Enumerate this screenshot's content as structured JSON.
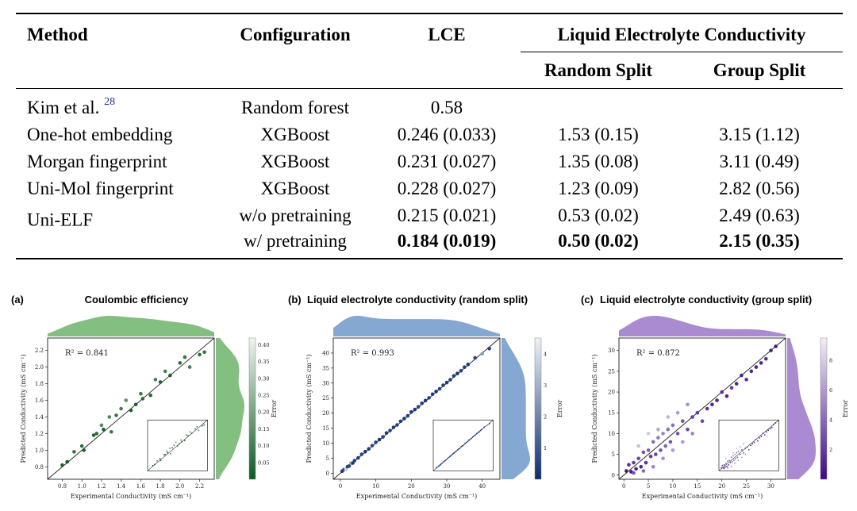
{
  "table": {
    "headers": {
      "method": "Method",
      "configuration": "Configuration",
      "lce": "LCE",
      "group": "Liquid Electrolyte Conductivity",
      "random": "Random Split",
      "groupsplit": "Group Split"
    },
    "rows": [
      {
        "method": "Kim et al.",
        "ref": "28",
        "config": "Random forest",
        "lce": "0.58",
        "random": "",
        "group": ""
      },
      {
        "method": "One-hot embedding",
        "config": "XGBoost",
        "lce": "0.246 (0.033)",
        "random": "1.53 (0.15)",
        "group": "3.15 (1.12)"
      },
      {
        "method": "Morgan fingerprint",
        "config": "XGBoost",
        "lce": "0.231 (0.027)",
        "random": "1.35 (0.08)",
        "group": "3.11 (0.49)"
      },
      {
        "method": "Uni-Mol fingerprint",
        "config": "XGBoost",
        "lce": "0.228 (0.027)",
        "random": "1.23 (0.09)",
        "group": "2.82 (0.56)"
      },
      {
        "method": "Uni-ELF",
        "config": "w/o pretraining",
        "lce": "0.215 (0.021)",
        "random": "0.53 (0.02)",
        "group": "2.49 (0.63)"
      },
      {
        "method": "",
        "config": "w/ pretraining",
        "lce": "0.184 (0.019)",
        "random": "0.50 (0.02)",
        "group": "2.15 (0.35)"
      }
    ]
  },
  "panels": [
    {
      "label": "(a)",
      "title": "Coulombic efficiency",
      "r2": "R² = 0.841",
      "xlabel": "Experimental Conductivity (mS cm⁻¹)",
      "ylabel": "Predicted Conductivity (mS cm⁻¹)",
      "cbar_label": "Error",
      "color": "#5aaa55"
    },
    {
      "label": "(b)",
      "title": "Liquid electrolyte conductivity (random split)",
      "r2": "R² = 0.993",
      "xlabel": "Experimental Conductivity (mS cm⁻¹)",
      "ylabel": "Predicted Conductivity (mS cm⁻¹)",
      "cbar_label": "Error",
      "color": "#5b8bc2"
    },
    {
      "label": "(c)",
      "title": "Liquid electrolyte conductivity (group split)",
      "r2": "R² = 0.872",
      "xlabel": "Experimental Conductivity (mS cm⁻¹)",
      "ylabel": "Predicted Conductivity (mS cm⁻¹)",
      "cbar_label": "Error",
      "color": "#8e64c1"
    }
  ],
  "chart_data": [
    {
      "type": "scatter",
      "title": "Coulombic efficiency",
      "xlabel": "Experimental Conductivity (mS cm⁻¹)",
      "ylabel": "Predicted Conductivity (mS cm⁻¹)",
      "xlim": [
        0.65,
        2.35
      ],
      "ylim": [
        0.65,
        2.35
      ],
      "xticks": [
        "0.8",
        "1.0",
        "1.2",
        "1.4",
        "1.6",
        "1.8",
        "2.0",
        "2.2"
      ],
      "yticks": [
        "0.8",
        "1.0",
        "1.2",
        "1.4",
        "1.6",
        "1.8",
        "2.0",
        "2.2"
      ],
      "cbar_ticks": [
        "0.05",
        "0.10",
        "0.15",
        "0.20",
        "0.25",
        "0.30",
        "0.35",
        "0.40"
      ],
      "cbar_range": [
        0,
        0.42
      ],
      "annotation": "R² = 0.841",
      "x": [
        0.8,
        0.85,
        0.92,
        1.0,
        1.02,
        1.12,
        1.15,
        1.2,
        1.22,
        1.28,
        1.3,
        1.35,
        1.4,
        1.45,
        1.5,
        1.55,
        1.6,
        1.62,
        1.7,
        1.75,
        1.8,
        1.85,
        1.9,
        2.0,
        2.05,
        2.1,
        2.2,
        2.25
      ],
      "y": [
        0.82,
        0.86,
        0.98,
        1.05,
        1.0,
        1.18,
        1.2,
        1.3,
        1.25,
        1.4,
        1.22,
        1.42,
        1.5,
        1.6,
        1.48,
        1.55,
        1.68,
        1.62,
        1.66,
        1.85,
        1.82,
        1.95,
        1.9,
        2.05,
        2.12,
        2.0,
        2.15,
        2.18
      ],
      "err": [
        0.02,
        0.01,
        0.06,
        0.05,
        0.02,
        0.03,
        0.05,
        0.12,
        0.03,
        0.12,
        0.08,
        0.07,
        0.1,
        0.15,
        0.02,
        0.03,
        0.08,
        0.04,
        0.04,
        0.1,
        0.02,
        0.1,
        0.02,
        0.05,
        0.07,
        0.1,
        0.05,
        0.07
      ]
    },
    {
      "type": "scatter",
      "title": "Liquid electrolyte conductivity (random split)",
      "xlabel": "Experimental Conductivity (mS cm⁻¹)",
      "ylabel": "Predicted Conductivity (mS cm⁻¹)",
      "xlim": [
        -2,
        45
      ],
      "ylim": [
        -2,
        45
      ],
      "xticks": [
        "0",
        "10",
        "20",
        "30",
        "40"
      ],
      "yticks": [
        "0",
        "5",
        "10",
        "15",
        "20",
        "25",
        "30",
        "35",
        "40"
      ],
      "cbar_ticks": [
        "1",
        "2",
        "3",
        "4"
      ],
      "cbar_range": [
        0,
        4.5
      ],
      "annotation": "R² = 0.993",
      "x": [
        0.5,
        1,
        1.5,
        2,
        2.5,
        3,
        3.5,
        4,
        5,
        6,
        7,
        8,
        9,
        10,
        11,
        12,
        13,
        14,
        15,
        16,
        17,
        18,
        19,
        20,
        21,
        22,
        23,
        24,
        25,
        26,
        27,
        28,
        29,
        30,
        31,
        32,
        33,
        34,
        35,
        36,
        38,
        40,
        42
      ],
      "y": [
        0.7,
        1.2,
        1.3,
        2.2,
        2.4,
        3.3,
        3.4,
        4.2,
        5.1,
        6.3,
        7.2,
        8.1,
        9.2,
        10.3,
        11.2,
        12.1,
        13.4,
        14.2,
        15.3,
        16.1,
        17.3,
        18.2,
        19.1,
        20.4,
        21.2,
        22.1,
        23.3,
        24.2,
        25.1,
        26.3,
        27.2,
        28.1,
        29.3,
        30.2,
        31.1,
        32.4,
        33.2,
        34.1,
        35.3,
        36.2,
        38.4,
        39.8,
        41.5
      ],
      "err": [
        0.3,
        0.4,
        3.5,
        0.5,
        0.6,
        2.8,
        0.3,
        0.5,
        0.4,
        0.6,
        0.3,
        0.4,
        0.7,
        0.5,
        0.3,
        0.5,
        0.4,
        0.6,
        0.3,
        0.5,
        0.4,
        0.3,
        0.5,
        0.4,
        0.3,
        0.6,
        0.4,
        0.3,
        0.5,
        0.4,
        0.3,
        0.5,
        0.4,
        0.3,
        0.5,
        0.4,
        0.3,
        0.5,
        0.4,
        0.3,
        0.6,
        2.5,
        0.4
      ]
    },
    {
      "type": "scatter",
      "title": "Liquid electrolyte conductivity (group split)",
      "xlabel": "Experimental Conductivity (mS cm⁻¹)",
      "ylabel": "Predicted Conductivity (mS cm⁻¹)",
      "xlim": [
        -1,
        33
      ],
      "ylim": [
        -1,
        33
      ],
      "xticks": [
        "0",
        "5",
        "10",
        "15",
        "20",
        "25",
        "30"
      ],
      "yticks": [
        "0",
        "5",
        "10",
        "15",
        "20",
        "25",
        "30"
      ],
      "cbar_ticks": [
        "2",
        "4",
        "6",
        "8"
      ],
      "cbar_range": [
        0,
        9.5
      ],
      "annotation": "R² = 0.872",
      "x": [
        0.5,
        1,
        1.5,
        2,
        2.5,
        3,
        3.5,
        4,
        4.5,
        5,
        5.5,
        6,
        6.5,
        7,
        7.5,
        8,
        8.5,
        9,
        9.5,
        10,
        11,
        12,
        13,
        14,
        15,
        16,
        17,
        18,
        19,
        20,
        21,
        22,
        23,
        24,
        25,
        26,
        27,
        28,
        29,
        30,
        31,
        3,
        5,
        7,
        9,
        11,
        13,
        2,
        4,
        6,
        8,
        10,
        12,
        14
      ],
      "y": [
        1,
        2.5,
        0.8,
        3,
        1.5,
        4,
        2,
        5.5,
        3,
        6,
        4.5,
        8,
        5,
        9,
        6,
        10,
        7,
        11,
        8,
        12,
        10,
        13,
        11,
        14,
        15,
        13,
        16,
        17,
        18,
        20,
        19,
        21,
        22,
        24,
        23,
        25,
        26,
        27,
        28,
        30,
        31,
        7,
        10,
        11,
        14,
        15,
        17,
        0.5,
        1,
        2,
        4,
        6,
        8,
        10
      ],
      "err": [
        0.5,
        1.5,
        0.5,
        2,
        0.8,
        2.5,
        1,
        3,
        1.5,
        3.5,
        2,
        4,
        2.5,
        4.5,
        3,
        5,
        3.5,
        4,
        3,
        4,
        3,
        3,
        2.5,
        2,
        2,
        2.5,
        1.5,
        1,
        1,
        1.5,
        1,
        2,
        1,
        1,
        1.5,
        1,
        1,
        1,
        1.5,
        1,
        0.5,
        7.5,
        8,
        6.5,
        7,
        6,
        5.5,
        3,
        4,
        5,
        5.5,
        6,
        6,
        5
      ]
    }
  ]
}
